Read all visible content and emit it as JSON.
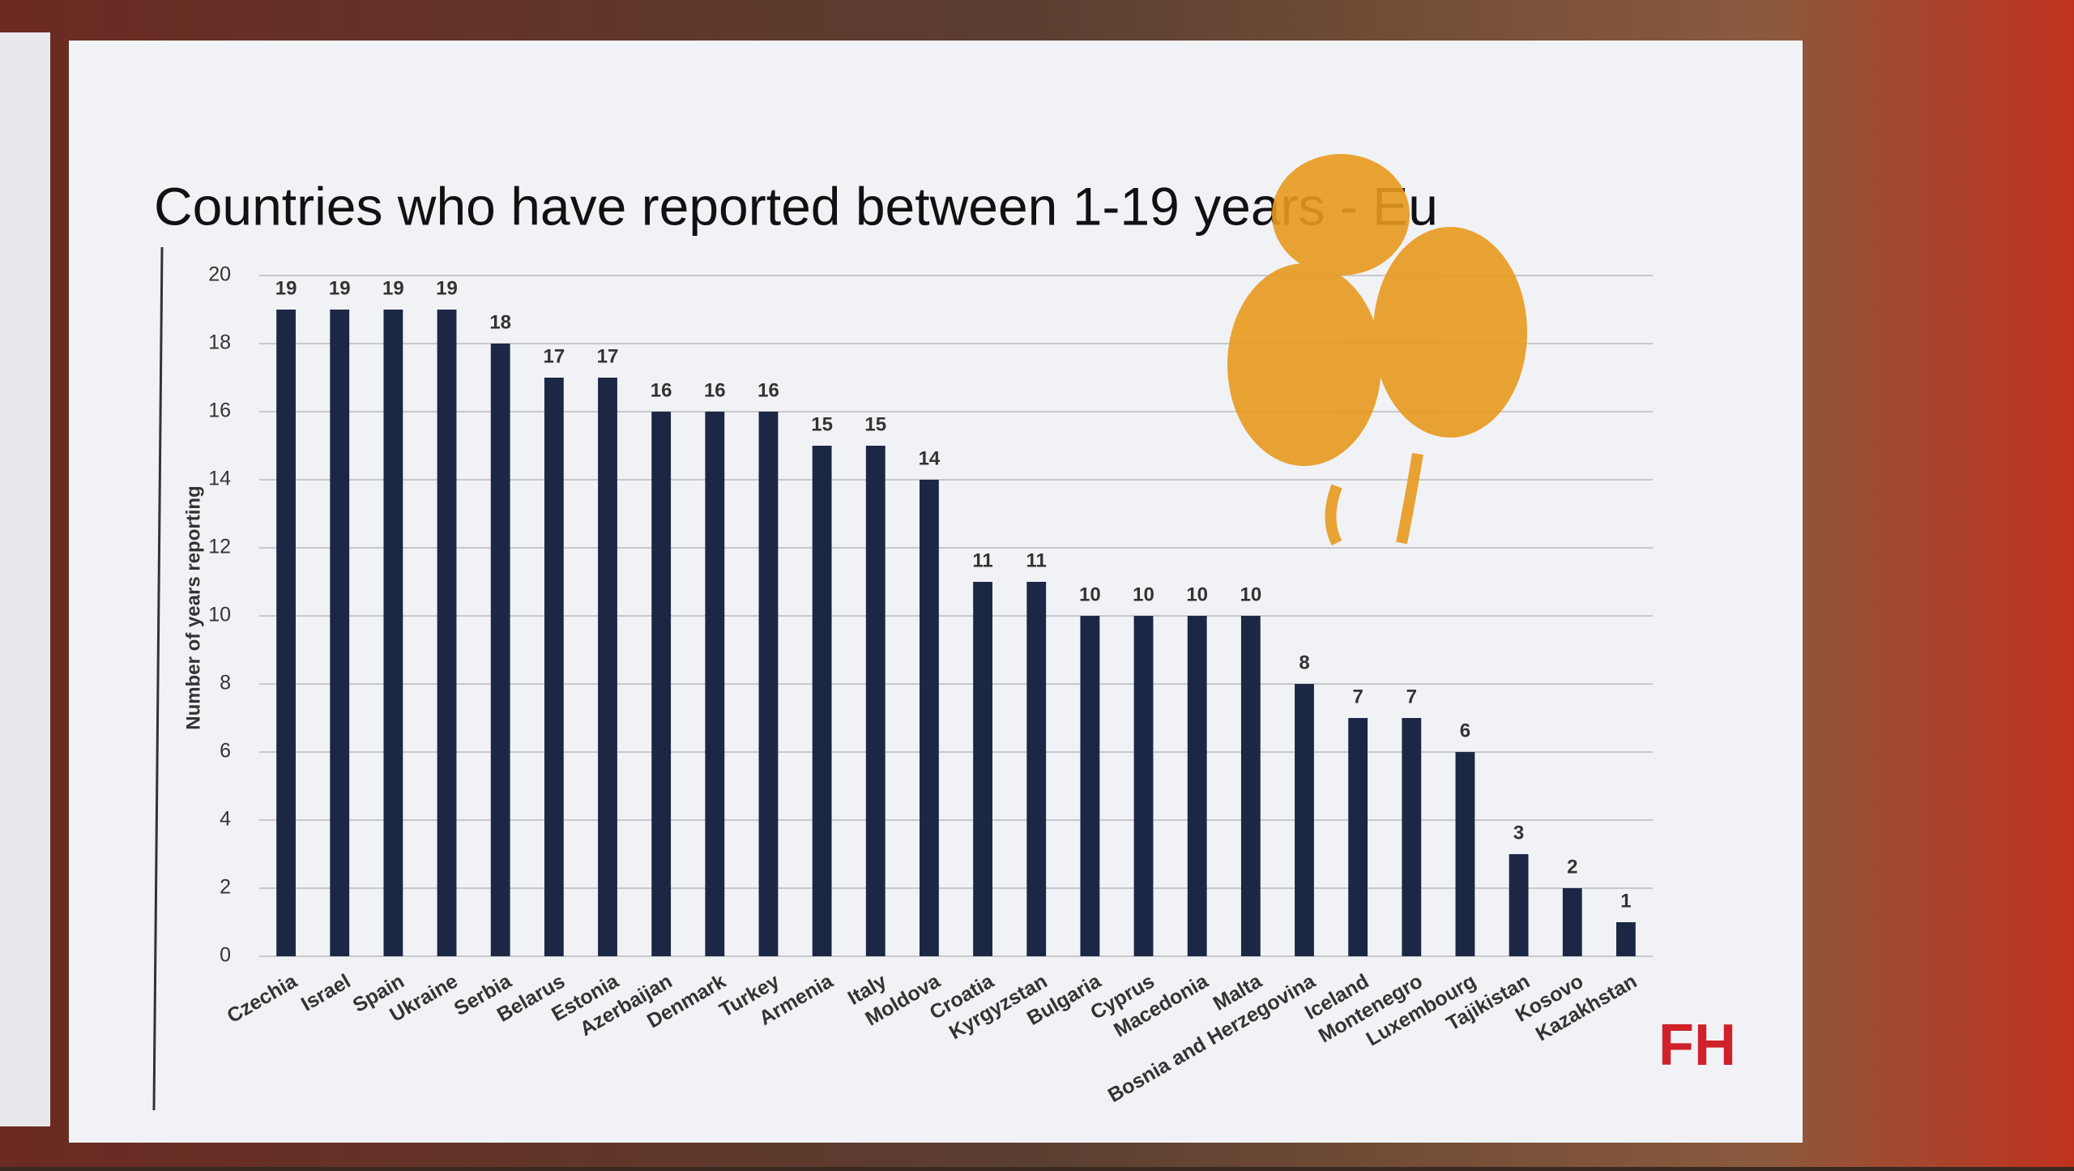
{
  "chart_data": {
    "type": "bar",
    "title": "Countries who have reported between 1-19 years - Eu",
    "y_label": "Number of years reporting",
    "categories": [
      "Czechia",
      "Israel",
      "Spain",
      "Ukraine",
      "Serbia",
      "Belarus",
      "Estonia",
      "Azerbaijan",
      "Denmark",
      "Turkey",
      "Armenia",
      "Italy",
      "Moldova",
      "Croatia",
      "Kyrgyzstan",
      "Bulgaria",
      "Cyprus",
      "Macedonia",
      "Malta",
      "Bosnia and Herzegovina",
      "Iceland",
      "Montenegro",
      "Luxembourg",
      "Tajikistan",
      "Kosovo",
      "Kazakhstan"
    ],
    "values": [
      19,
      19,
      19,
      19,
      18,
      17,
      17,
      16,
      16,
      16,
      15,
      15,
      14,
      11,
      11,
      10,
      10,
      10,
      10,
      8,
      7,
      7,
      6,
      3,
      2,
      1
    ],
    "color": "#1b2744",
    "ylim": [
      0,
      20
    ],
    "yticks": [
      0,
      2,
      4,
      6,
      8,
      10,
      12,
      14,
      16,
      18,
      20
    ],
    "grid": true,
    "logo": "FH"
  }
}
